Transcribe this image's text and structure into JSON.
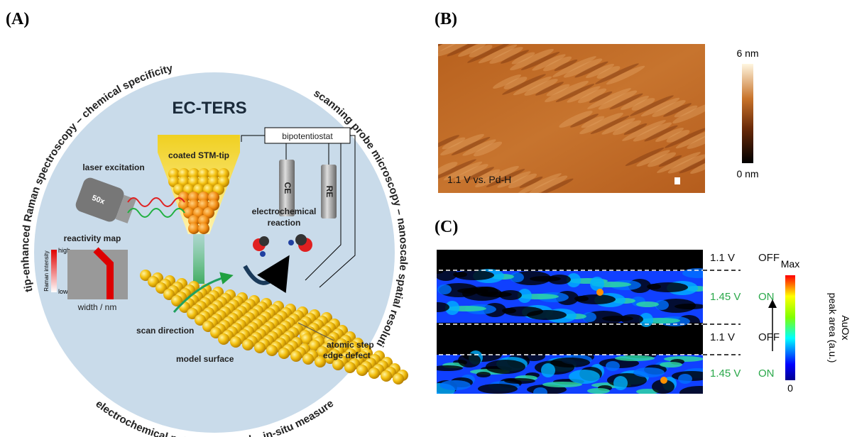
{
  "panel_a": {
    "label": "(A)",
    "arc_texts": [
      "tip-enhanced Raman spectroscopy – chemical specificity",
      "scanning probe microscopy – nanoscale spatial resolution",
      "electrochemical potential control – in-situ measurements"
    ],
    "title": "EC-TERS",
    "bipotentiostat": "bipotentiostat",
    "tip": "coated STM-tip",
    "counter_electrode": "CE",
    "reference_electrode": "RE",
    "laser": "laser excitation",
    "objective": "50x",
    "reactivity_map": "reactivity map",
    "raman_axis": "Raman intensity",
    "high": "high",
    "low": "low",
    "width_axis": "width / nm",
    "reaction": [
      "electrochemical",
      "reaction"
    ],
    "scan_direction": "scan direction",
    "model_surface": "model surface",
    "defect": [
      "atomic step",
      "edge defect"
    ]
  },
  "panel_b": {
    "label": "(B)",
    "scale_max": "6 nm",
    "scale_min": "0 nm",
    "caption": "1.1 V vs. Pd-H"
  },
  "panel_c": {
    "label": "(C)",
    "rows": [
      {
        "voltage": "1.1 V",
        "state": "OFF"
      },
      {
        "voltage": "1.45 V",
        "state": "ON"
      },
      {
        "voltage": "1.1 V",
        "state": "OFF"
      },
      {
        "voltage": "1.45 V",
        "state": "ON"
      }
    ],
    "scale_max": "Max",
    "scale_min": "0",
    "scale_title": [
      "AuOx",
      "peak area (a.u.)"
    ]
  }
}
